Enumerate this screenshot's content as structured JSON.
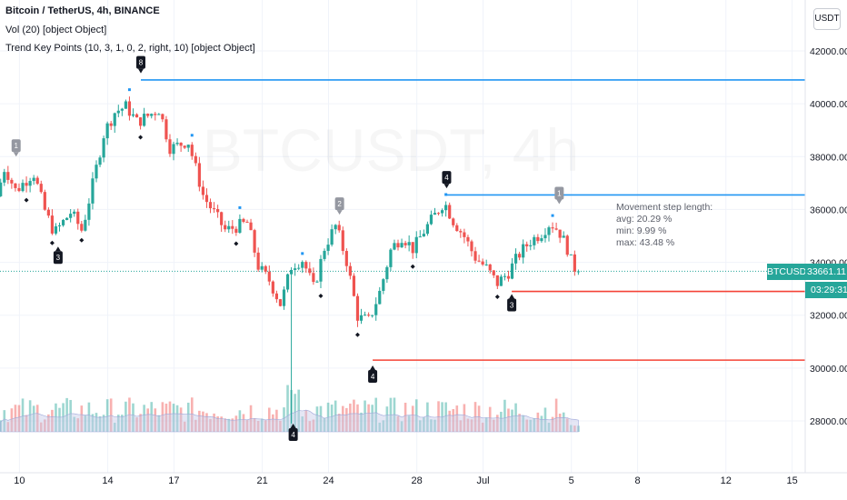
{
  "header": {
    "symbol_line": "Bitcoin / TetherUS, 4h, BINANCE",
    "indicator_vol": "Vol (20) [object Object]",
    "indicator_trend": "Trend Key Points (10, 3, 1, 0, 2, right, 10) [object Object]"
  },
  "watermark": "BTCUSDT, 4h",
  "currency_button": "USDT",
  "ticker_label": "BTCUSDT",
  "last_price": "33661.11",
  "countdown": "03:29:31",
  "stats_box": {
    "title": "Movement step length:",
    "avg": "avg: 20.29 %",
    "min": "min: 9.99 %",
    "max": "max: 43.48 %"
  },
  "colors": {
    "up": "#26a69a",
    "down": "#ef5350",
    "resistance": "#2196f3",
    "support": "#f44336",
    "marker_dark": "#131722",
    "marker_grey": "#9598a1",
    "volume_ma": "#c5cae9"
  },
  "chart_data": {
    "type": "candlestick",
    "timeframe": "4h",
    "y_axis": {
      "ticks": [
        "28000.00",
        "30000.00",
        "32000.00",
        "34000.00",
        "36000.00",
        "38000.00",
        "40000.00",
        "42000.00"
      ],
      "range": [
        26300,
        42900
      ]
    },
    "x_axis": {
      "ticks": [
        {
          "label": "10",
          "day": 10
        },
        {
          "label": "14",
          "day": 14
        },
        {
          "label": "17",
          "day": 17
        },
        {
          "label": "21",
          "day": 21
        },
        {
          "label": "24",
          "day": 24
        },
        {
          "label": "28",
          "day": 28
        },
        {
          "label": "Jul",
          "day": 31
        },
        {
          "label": "5",
          "day": 35
        },
        {
          "label": "8",
          "day": 38
        },
        {
          "label": "12",
          "day": 42
        },
        {
          "label": "15",
          "day": 45
        }
      ],
      "range": [
        9.12,
        45.55
      ]
    },
    "anchors": [
      {
        "day": 9.15,
        "price": 36500
      },
      {
        "day": 9.5,
        "price": 37600
      },
      {
        "day": 10.0,
        "price": 36700
      },
      {
        "day": 10.8,
        "price": 37400
      },
      {
        "day": 11.3,
        "price": 36000
      },
      {
        "day": 11.75,
        "price": 35100
      },
      {
        "day": 12.5,
        "price": 35900
      },
      {
        "day": 13.0,
        "price": 35200
      },
      {
        "day": 13.5,
        "price": 37000
      },
      {
        "day": 14.0,
        "price": 38900
      },
      {
        "day": 14.5,
        "price": 39700
      },
      {
        "day": 15.0,
        "price": 39900
      },
      {
        "day": 15.5,
        "price": 39300
      },
      {
        "day": 16.5,
        "price": 39800
      },
      {
        "day": 17.0,
        "price": 38300
      },
      {
        "day": 17.8,
        "price": 38600
      },
      {
        "day": 18.5,
        "price": 36500
      },
      {
        "day": 19.5,
        "price": 35200
      },
      {
        "day": 20.5,
        "price": 35500
      },
      {
        "day": 21.0,
        "price": 33800
      },
      {
        "day": 21.5,
        "price": 33300
      },
      {
        "day": 22.0,
        "price": 32400
      },
      {
        "day": 22.5,
        "price": 33900
      },
      {
        "day": 23.0,
        "price": 34100
      },
      {
        "day": 23.5,
        "price": 33000
      },
      {
        "day": 24.0,
        "price": 34600
      },
      {
        "day": 24.5,
        "price": 35400
      },
      {
        "day": 25.0,
        "price": 34000
      },
      {
        "day": 25.5,
        "price": 31900
      },
      {
        "day": 26.0,
        "price": 31800
      },
      {
        "day": 26.5,
        "price": 32900
      },
      {
        "day": 27.0,
        "price": 34500
      },
      {
        "day": 27.5,
        "price": 35000
      },
      {
        "day": 28.0,
        "price": 34500
      },
      {
        "day": 28.5,
        "price": 35200
      },
      {
        "day": 29.0,
        "price": 35800
      },
      {
        "day": 29.4,
        "price": 36300
      },
      {
        "day": 29.8,
        "price": 35600
      },
      {
        "day": 30.3,
        "price": 35000
      },
      {
        "day": 30.8,
        "price": 34200
      },
      {
        "day": 31.3,
        "price": 33800
      },
      {
        "day": 31.8,
        "price": 33200
      },
      {
        "day": 32.3,
        "price": 33600
      },
      {
        "day": 32.8,
        "price": 34300
      },
      {
        "day": 33.3,
        "price": 34800
      },
      {
        "day": 33.8,
        "price": 35100
      },
      {
        "day": 34.2,
        "price": 35500
      },
      {
        "day": 34.6,
        "price": 35200
      },
      {
        "day": 35.0,
        "price": 34500
      },
      {
        "day": 35.2,
        "price": 33900
      },
      {
        "day": 35.45,
        "price": 33661
      }
    ],
    "trend_lines": [
      {
        "kind": "resistance",
        "price": 40900,
        "from_day": 15.5
      },
      {
        "kind": "resistance",
        "price": 36550,
        "from_day": 29.3
      },
      {
        "kind": "support",
        "price": 30300,
        "from_day": 26.0
      },
      {
        "kind": "support",
        "price": 32900,
        "from_day": 32.3
      }
    ],
    "last_price_line": 33661.11,
    "key_points": [
      {
        "label": "1",
        "day": 9.85,
        "price": 37900,
        "color": "grey",
        "side": "above"
      },
      {
        "label": "3",
        "day": 11.75,
        "price": 34700,
        "color": "dark",
        "side": "below"
      },
      {
        "label": "8",
        "day": 15.5,
        "price": 41050,
        "color": "dark",
        "side": "above"
      },
      {
        "label": "2",
        "day": 24.5,
        "price": 35700,
        "color": "grey",
        "side": "above"
      },
      {
        "label": "4",
        "day": 26.0,
        "price": 30200,
        "color": "dark",
        "side": "below"
      },
      {
        "label": "4",
        "day": 22.4,
        "price": 28000,
        "color": "dark",
        "side": "below"
      },
      {
        "label": "4",
        "day": 29.35,
        "price": 36700,
        "color": "dark",
        "side": "above"
      },
      {
        "label": "3",
        "day": 32.3,
        "price": 32900,
        "color": "dark",
        "side": "below"
      },
      {
        "label": "1",
        "day": 34.45,
        "price": 36100,
        "color": "grey",
        "side": "above"
      }
    ]
  }
}
